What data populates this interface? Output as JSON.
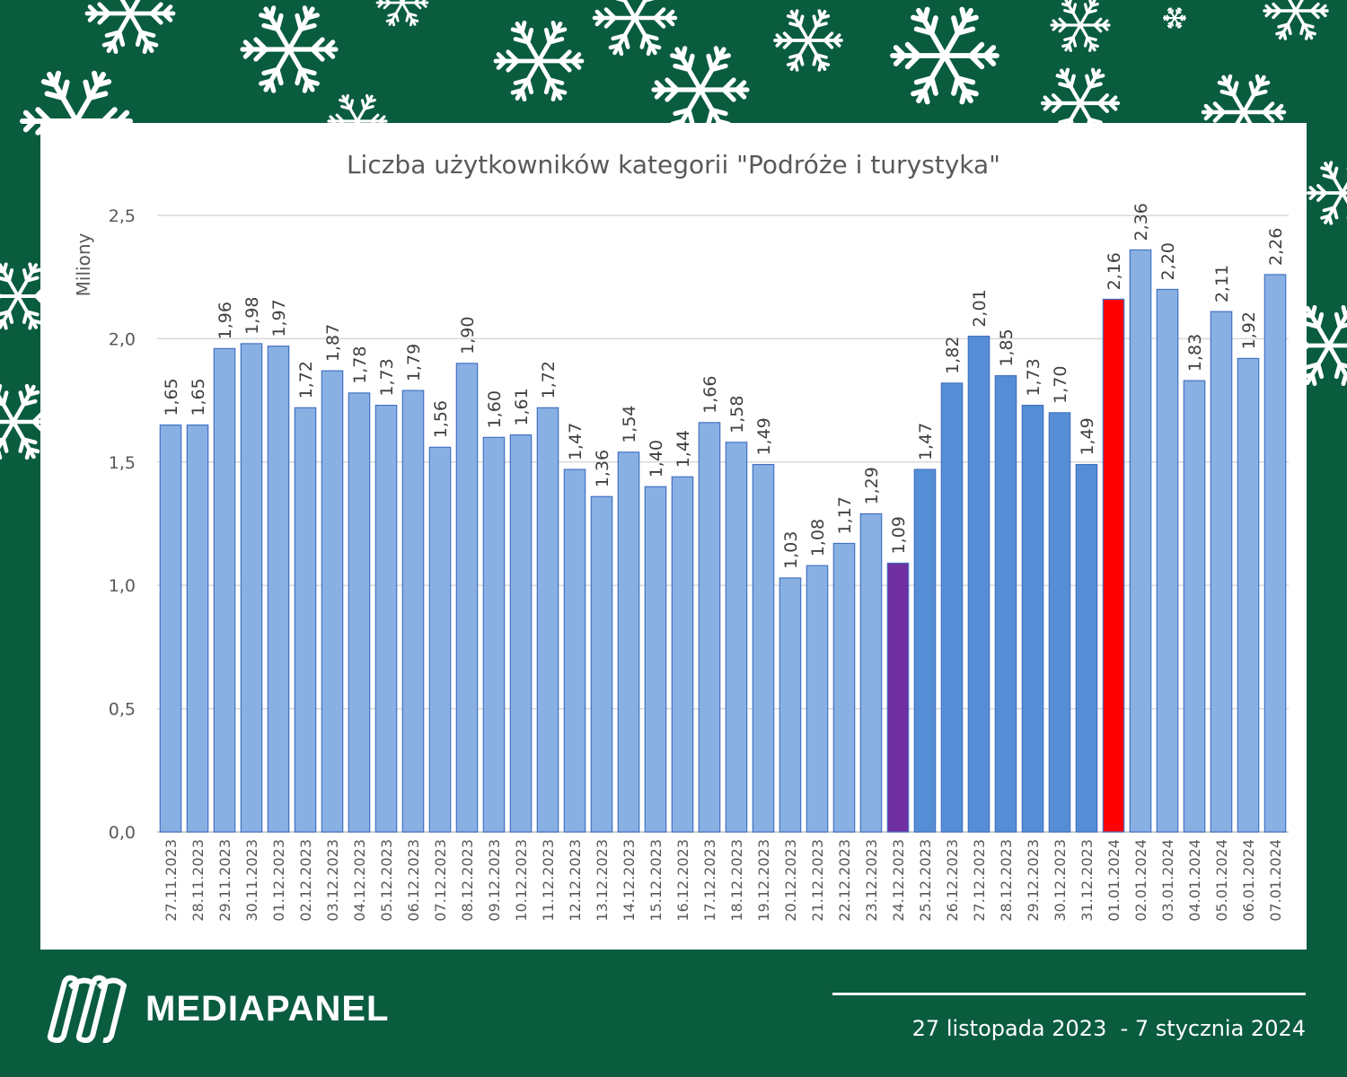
{
  "brand": {
    "name": "MEDIAPANEL",
    "period": "27 listopada 2023  - 7 stycznia 2024",
    "logo_icon": "mediapanel-logo-icon"
  },
  "decoration": {
    "icon": "snowflake-icon",
    "color": "#ffffff",
    "background": "#0a5c3e"
  },
  "chart_data": {
    "type": "bar",
    "title": "Liczba użytkowników kategorii \"Podróże i turystyka\"",
    "ylabel": "Miliony",
    "xlabel": "",
    "ylim": [
      0,
      2.5
    ],
    "yticks": [
      "0,0",
      "0,5",
      "1,0",
      "1,5",
      "2,0",
      "2,5"
    ],
    "ytick_values": [
      0,
      0.5,
      1.0,
      1.5,
      2.0,
      2.5
    ],
    "grid": true,
    "legend": "none",
    "categories": [
      "27.11.2023",
      "28.11.2023",
      "29.11.2023",
      "30.11.2023",
      "01.12.2023",
      "02.12.2023",
      "03.12.2023",
      "04.12.2023",
      "05.12.2023",
      "06.12.2023",
      "07.12.2023",
      "08.12.2023",
      "09.12.2023",
      "10.12.2023",
      "11.12.2023",
      "12.12.2023",
      "13.12.2023",
      "14.12.2023",
      "15.12.2023",
      "16.12.2023",
      "17.12.2023",
      "18.12.2023",
      "19.12.2023",
      "20.12.2023",
      "21.12.2023",
      "22.12.2023",
      "23.12.2023",
      "24.12.2023",
      "25.12.2023",
      "26.12.2023",
      "27.12.2023",
      "28.12.2023",
      "29.12.2023",
      "30.12.2023",
      "31.12.2023",
      "01.01.2024",
      "02.01.2024",
      "03.01.2024",
      "04.01.2024",
      "05.01.2024",
      "06.01.2024",
      "07.01.2024"
    ],
    "values": [
      1.65,
      1.65,
      1.96,
      1.98,
      1.97,
      1.72,
      1.87,
      1.78,
      1.73,
      1.79,
      1.56,
      1.9,
      1.6,
      1.61,
      1.72,
      1.47,
      1.36,
      1.54,
      1.4,
      1.44,
      1.66,
      1.58,
      1.49,
      1.03,
      1.08,
      1.17,
      1.29,
      1.09,
      1.47,
      1.82,
      2.01,
      1.85,
      1.73,
      1.7,
      1.49,
      2.16,
      2.36,
      2.2,
      1.83,
      2.11,
      1.92,
      2.26
    ],
    "value_labels": [
      "1,65",
      "1,65",
      "1,96",
      "1,98",
      "1,97",
      "1,72",
      "1,87",
      "1,78",
      "1,73",
      "1,79",
      "1,56",
      "1,90",
      "1,60",
      "1,61",
      "1,72",
      "1,47",
      "1,36",
      "1,54",
      "1,40",
      "1,44",
      "1,66",
      "1,58",
      "1,49",
      "1,03",
      "1,08",
      "1,17",
      "1,29",
      "1,09",
      "1,47",
      "1,82",
      "2,01",
      "1,85",
      "1,73",
      "1,70",
      "1,49",
      "2,16",
      "2,36",
      "2,20",
      "1,83",
      "2,11",
      "1,92",
      "2,26"
    ],
    "colors": [
      "#88b0e3",
      "#88b0e3",
      "#88b0e3",
      "#88b0e3",
      "#88b0e3",
      "#88b0e3",
      "#88b0e3",
      "#88b0e3",
      "#88b0e3",
      "#88b0e3",
      "#88b0e3",
      "#88b0e3",
      "#88b0e3",
      "#88b0e3",
      "#88b0e3",
      "#88b0e3",
      "#88b0e3",
      "#88b0e3",
      "#88b0e3",
      "#88b0e3",
      "#88b0e3",
      "#88b0e3",
      "#88b0e3",
      "#88b0e3",
      "#88b0e3",
      "#88b0e3",
      "#88b0e3",
      "#7030a0",
      "#558ed5",
      "#558ed5",
      "#558ed5",
      "#558ed5",
      "#558ed5",
      "#558ed5",
      "#558ed5",
      "#ff0000",
      "#88b0e3",
      "#88b0e3",
      "#88b0e3",
      "#88b0e3",
      "#88b0e3",
      "#88b0e3"
    ]
  }
}
